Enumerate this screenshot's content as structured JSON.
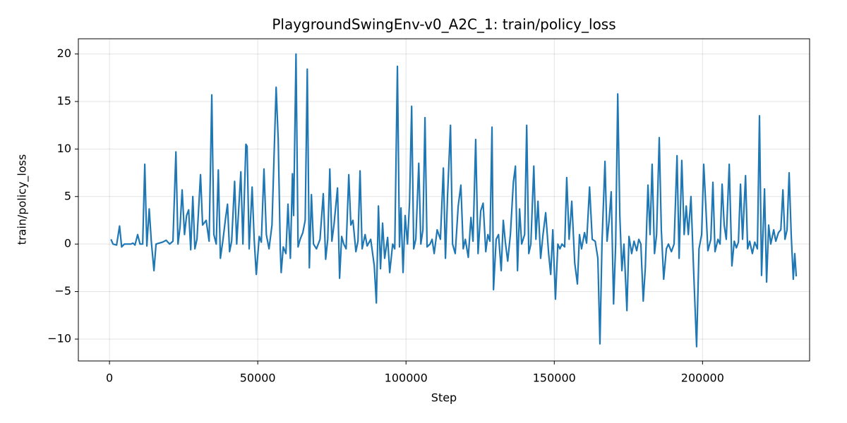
{
  "chart_data": {
    "type": "line",
    "title": "PlaygroundSwingEnv-v0_A2C_1: train/policy_loss",
    "xlabel": "Step",
    "ylabel": "train/policy_loss",
    "color": "#1f77b4",
    "grid": true,
    "xlim": [
      -10500,
      236100
    ],
    "ylim": [
      -12.3,
      21.6
    ],
    "xticks": [
      0,
      50000,
      100000,
      150000,
      200000
    ],
    "yticks": [
      {
        "value": -10,
        "label": "−10"
      },
      {
        "value": -5,
        "label": "−5"
      },
      0,
      5,
      10,
      15,
      20
    ],
    "x": [
      500,
      1200,
      2400,
      3400,
      4100,
      5000,
      7200,
      7900,
      8600,
      9500,
      10300,
      11200,
      11900,
      12600,
      13400,
      14100,
      15000,
      15700,
      17900,
      19100,
      20300,
      21400,
      22400,
      23100,
      23800,
      24500,
      25300,
      26000,
      26700,
      27400,
      28100,
      28800,
      29500,
      30700,
      31400,
      32600,
      33600,
      34500,
      35200,
      36000,
      36700,
      37400,
      38300,
      39100,
      39800,
      40500,
      41200,
      42200,
      42900,
      44300,
      45000,
      46000,
      46400,
      47100,
      48100,
      48800,
      49500,
      50500,
      51200,
      52100,
      52900,
      53800,
      54800,
      56200,
      56900,
      57600,
      57900,
      58600,
      59500,
      60200,
      61000,
      61700,
      62100,
      62900,
      63600,
      64300,
      65200,
      66000,
      66700,
      67400,
      68100,
      68800,
      69800,
      71000,
      72100,
      72900,
      73600,
      74300,
      75000,
      75700,
      76900,
      77600,
      78300,
      79000,
      79800,
      80700,
      81400,
      82100,
      83100,
      83800,
      84500,
      85200,
      86200,
      86900,
      88100,
      89300,
      90000,
      90700,
      91400,
      92100,
      92800,
      93800,
      94500,
      95500,
      96200,
      97100,
      97800,
      98300,
      99000,
      99700,
      100500,
      101200,
      101900,
      102600,
      103300,
      104300,
      105000,
      105700,
      106400,
      107100,
      108100,
      108800,
      109500,
      110500,
      111600,
      112600,
      113300,
      114000,
      115000,
      115700,
      116600,
      117600,
      118500,
      119300,
      120000,
      121000,
      121900,
      122600,
      123500,
      124300,
      125200,
      126000,
      126900,
      127600,
      128300,
      129000,
      129500,
      130400,
      131200,
      132100,
      132800,
      133500,
      134300,
      135200,
      136200,
      136900,
      137600,
      138300,
      139000,
      140000,
      140700,
      141400,
      142100,
      143100,
      143800,
      144500,
      145400,
      146200,
      147100,
      148100,
      148800,
      149500,
      150400,
      151200,
      151900,
      152600,
      153500,
      154200,
      155000,
      155900,
      156900,
      157800,
      158500,
      159200,
      160200,
      160900,
      161900,
      162800,
      163800,
      164700,
      165400,
      166100,
      167100,
      167800,
      168500,
      169200,
      170000,
      170700,
      171400,
      172100,
      172800,
      173500,
      174500,
      175200,
      176100,
      176900,
      177800,
      178500,
      179200,
      180000,
      180700,
      181600,
      182300,
      183000,
      183800,
      184500,
      185400,
      186100,
      186900,
      187800,
      188500,
      189500,
      190400,
      191400,
      192100,
      193000,
      193800,
      194500,
      195200,
      196100,
      196900,
      197600,
      198000,
      198800,
      199700,
      200400,
      201100,
      201800,
      202800,
      203500,
      204200,
      205200,
      205900,
      206600,
      207300,
      208000,
      209000,
      209900,
      210700,
      211400,
      212100,
      212800,
      213500,
      214500,
      215200,
      215900,
      216800,
      217600,
      218500,
      219200,
      219900,
      220900,
      221600,
      222300,
      223000,
      224000,
      224700,
      225600,
      226400,
      227100,
      227800,
      228500,
      229200,
      229900,
      230600,
      231100,
      231600
    ],
    "values": [
      0.5,
      0,
      -0.1,
      1.9,
      -0.3,
      0,
      0,
      0.1,
      -0.1,
      1.0,
      0,
      0,
      8.4,
      -0.2,
      3.7,
      0.3,
      -2.8,
      0,
      0.2,
      0.4,
      0,
      0.3,
      9.7,
      0,
      1.8,
      5.7,
      1.0,
      3.0,
      3.6,
      -0.6,
      5.0,
      -0.5,
      0.5,
      7.3,
      2.0,
      2.5,
      0.3,
      15.7,
      1.0,
      0,
      7.8,
      -1.5,
      0.5,
      2.6,
      4.2,
      -0.8,
      0.3,
      6.6,
      0,
      7.6,
      0,
      10.5,
      10.3,
      -0.5,
      6.0,
      0.5,
      -3.2,
      0.8,
      0.2,
      7.9,
      1.0,
      -0.5,
      2.0,
      16.5,
      11,
      -0.5,
      -3.0,
      -0.3,
      -1.0,
      4.2,
      -1.5,
      7.4,
      3.0,
      20.0,
      -0.3,
      0.5,
      1.2,
      2.5,
      18.4,
      -2.5,
      5.2,
      0,
      -0.5,
      0.5,
      5.3,
      -1.6,
      0.5,
      7.9,
      0.3,
      2.0,
      5.9,
      -3.6,
      0.8,
      0,
      -0.5,
      7.3,
      2.0,
      2.5,
      -0.8,
      0.3,
      7.7,
      -0.5,
      1.0,
      -0.2,
      0.5,
      -2.3,
      -6.2,
      4.0,
      -2.6,
      2.2,
      -1.5,
      0.7,
      -3.0,
      0,
      -0.5,
      18.7,
      -0.3,
      3.8,
      -3.0,
      3.0,
      0,
      4.5,
      14.5,
      -0.5,
      0.5,
      8.5,
      0,
      1.5,
      13.3,
      -0.3,
      0,
      0.5,
      -1.0,
      1.5,
      0.5,
      8.0,
      -1.5,
      5.0,
      12.5,
      0,
      -1.0,
      4.0,
      6.2,
      -0.5,
      0.5,
      -1.4,
      2.8,
      0.3,
      11.0,
      -1.0,
      3.5,
      4.3,
      -0.8,
      1.0,
      0.3,
      12.3,
      -4.8,
      0.5,
      1.0,
      -2.8,
      2.5,
      0.2,
      -1.8,
      1.0,
      6.5,
      8.2,
      -2.8,
      3.7,
      0,
      1.0,
      12.5,
      -1.0,
      0,
      8.2,
      0.5,
      4.5,
      -1.5,
      1.0,
      3.3,
      -1.0,
      -3.2,
      1.5,
      -5.8,
      0,
      -0.5,
      0,
      -0.3,
      7.0,
      0.5,
      4.5,
      -2.0,
      -4.2,
      1.0,
      -0.5,
      1.2,
      0.1,
      6.0,
      0.5,
      0.3,
      -1.5,
      -10.5,
      0.2,
      8.7,
      0.3,
      2.5,
      5.5,
      -6.3,
      0,
      15.8,
      3.0,
      -2.8,
      0,
      -7.0,
      0.8,
      -1.0,
      0.3,
      -0.7,
      0.5,
      0,
      -6.0,
      -2.5,
      6.2,
      1.0,
      8.4,
      -1.0,
      1.0,
      11.2,
      1.5,
      -3.7,
      -0.5,
      0,
      -0.8,
      0,
      9.3,
      -1.5,
      8.8,
      1.0,
      4.0,
      1.0,
      5.0,
      -2.0,
      -7.7,
      -10.8,
      -0.5,
      1.0,
      8.4,
      4.0,
      -0.7,
      0.5,
      6.5,
      -0.8,
      0.5,
      0,
      6.3,
      2.0,
      0.5,
      8.4,
      -2.3,
      0.3,
      -0.4,
      0.2,
      6.3,
      0.5,
      7.2,
      -0.5,
      0.3,
      -1.0,
      0.2,
      -0.5,
      13.5,
      -3.3,
      5.8,
      -4.0,
      2.0,
      0,
      1.5,
      0.3,
      1.2,
      1.5,
      5.7,
      0.5,
      1.5,
      7.5,
      1.0,
      -3.7,
      -1.0,
      -3.4
    ]
  }
}
